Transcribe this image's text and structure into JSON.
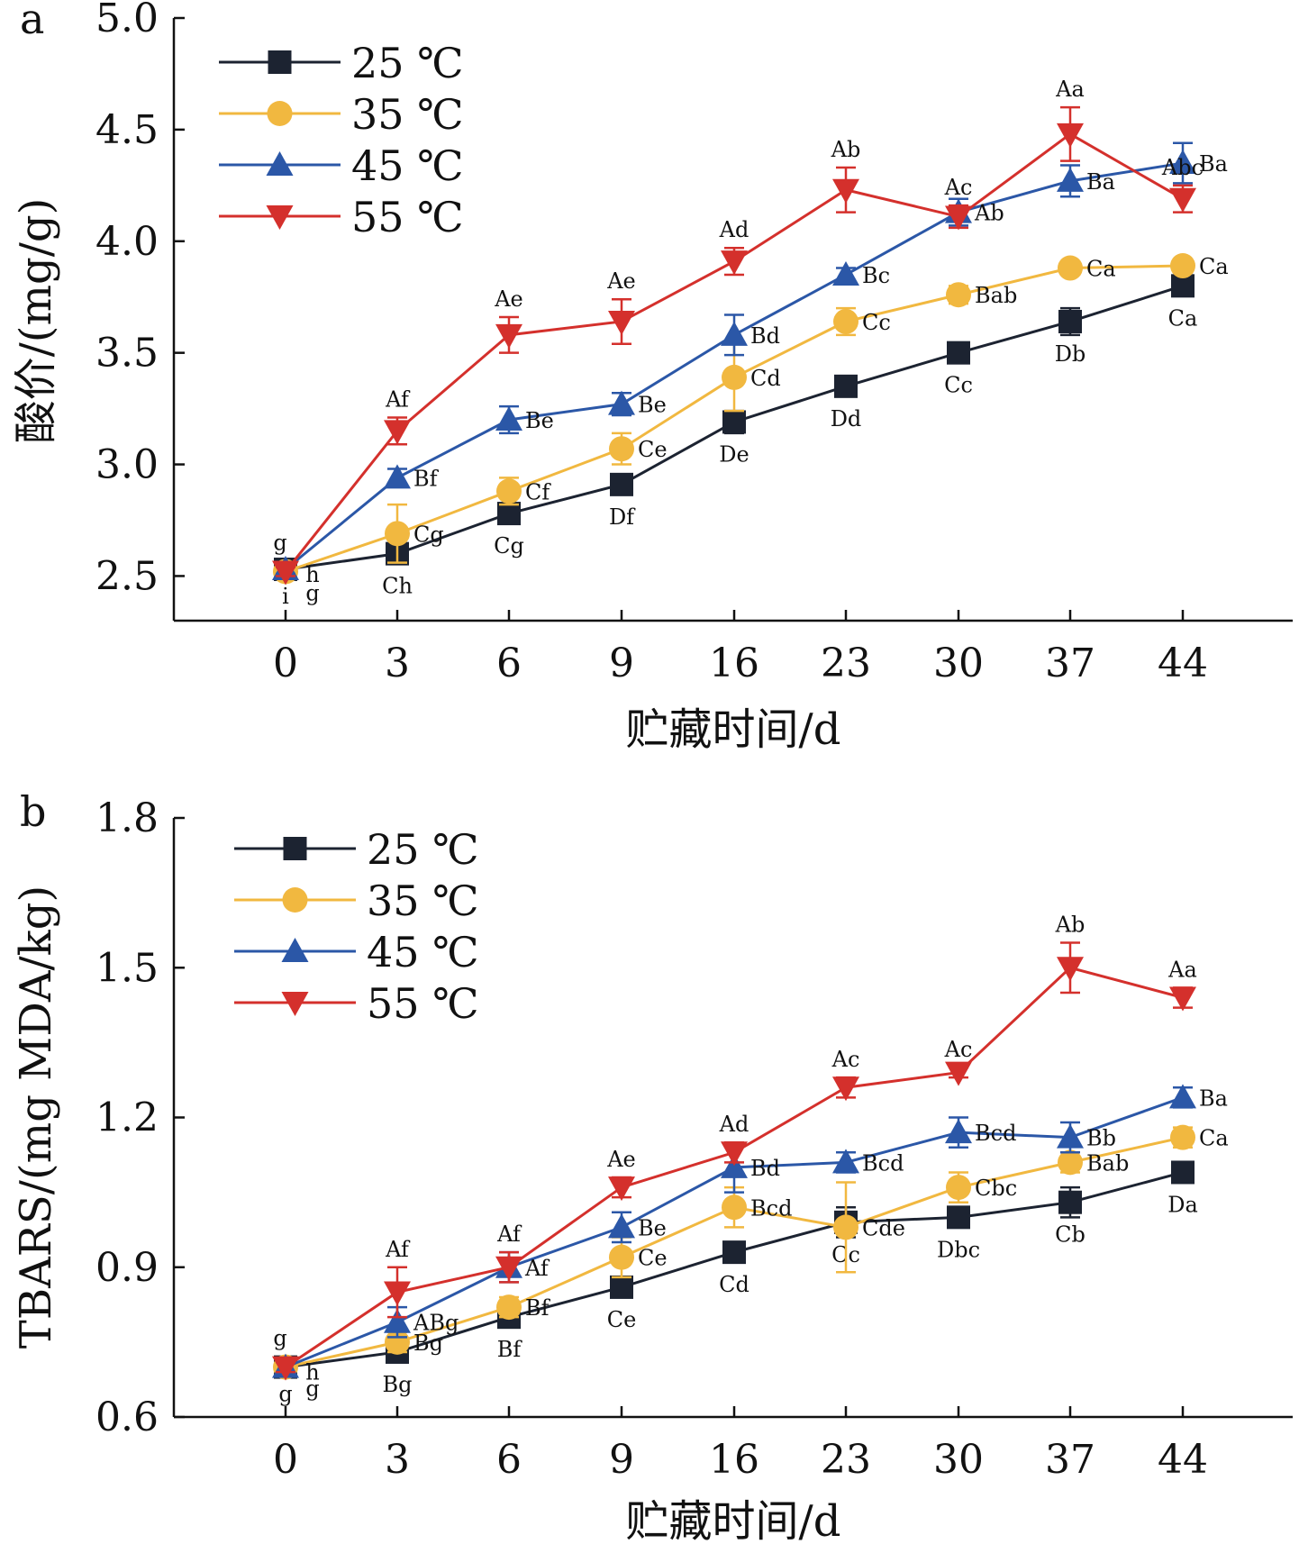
{
  "chart_data": [
    {
      "type": "line",
      "panel_label": "a",
      "ylabel": "酸价/(mg/g)",
      "xlabel": "贮藏时间/d",
      "categories": [
        "0",
        "3",
        "6",
        "9",
        "16",
        "23",
        "30",
        "37",
        "44"
      ],
      "ylim": [
        2.3,
        5.0
      ],
      "yticks": [
        "2.5",
        "3.0",
        "3.5",
        "4.0",
        "4.5",
        "5.0"
      ],
      "legend_position": "top-left",
      "grid": false,
      "series": [
        {
          "name": "25 ℃",
          "color": "#1c2331",
          "marker": "square",
          "values": [
            2.53,
            2.6,
            2.78,
            2.91,
            3.19,
            3.35,
            3.5,
            3.64,
            3.8
          ],
          "errors": [
            0.02,
            0.03,
            0.02,
            0.04,
            0.05,
            0.02,
            0.02,
            0.06,
            0.02
          ],
          "labels": [
            "i",
            "Ch",
            "Cg",
            "Df",
            "De",
            "Dd",
            "Cc",
            "Db",
            "Ca"
          ]
        },
        {
          "name": "35 ℃",
          "color": "#f1b840",
          "marker": "circle",
          "values": [
            2.52,
            2.69,
            2.88,
            3.07,
            3.39,
            3.64,
            3.76,
            3.88,
            3.89
          ],
          "errors": [
            0.02,
            0.13,
            0.06,
            0.07,
            0.15,
            0.06,
            0.04,
            0.02,
            0.02
          ],
          "labels": [
            "g",
            "Cg",
            "Cf",
            "Ce",
            "Cd",
            "Cc",
            "Bab",
            "Ca",
            "Ca"
          ]
        },
        {
          "name": "45 ℃",
          "color": "#2b57a7",
          "marker": "triangle-up",
          "values": [
            2.53,
            2.94,
            3.2,
            3.27,
            3.58,
            3.85,
            4.13,
            4.27,
            4.35
          ],
          "errors": [
            0.02,
            0.04,
            0.06,
            0.05,
            0.09,
            0.03,
            0.06,
            0.07,
            0.09
          ],
          "labels": [
            "h",
            "Bf",
            "Be",
            "Be",
            "Bd",
            "Bc",
            "Ab",
            "Ba",
            "Ba"
          ]
        },
        {
          "name": "55 ℃",
          "color": "#d4302c",
          "marker": "triangle-down",
          "values": [
            2.52,
            3.15,
            3.58,
            3.64,
            3.91,
            4.23,
            4.11,
            4.48,
            4.19
          ],
          "errors": [
            0.02,
            0.06,
            0.08,
            0.1,
            0.06,
            0.1,
            0.05,
            0.12,
            0.06
          ],
          "labels": [
            "g",
            "Af",
            "Ae",
            "Ae",
            "Ad",
            "Ab",
            "Ac",
            "Aa",
            "Abc"
          ]
        }
      ]
    },
    {
      "type": "line",
      "panel_label": "b",
      "ylabel": "TBARS/(mg MDA/kg)",
      "xlabel": "贮藏时间/d",
      "categories": [
        "0",
        "3",
        "6",
        "9",
        "16",
        "23",
        "30",
        "37",
        "44"
      ],
      "ylim": [
        0.6,
        1.8
      ],
      "yticks": [
        "0.6",
        "0.9",
        "1.2",
        "1.5",
        "1.8"
      ],
      "legend_position": "top-left",
      "grid": false,
      "series": [
        {
          "name": "25 ℃",
          "color": "#1c2331",
          "marker": "square",
          "values": [
            0.7,
            0.73,
            0.8,
            0.86,
            0.93,
            0.99,
            1.0,
            1.03,
            1.09
          ],
          "errors": [
            0.01,
            0.02,
            0.02,
            0.01,
            0.02,
            0.03,
            0.02,
            0.03,
            0.01
          ],
          "labels": [
            "g",
            "Bg",
            "Bf",
            "Ce",
            "Cd",
            "Cc",
            "Dbc",
            "Cb",
            "Da"
          ]
        },
        {
          "name": "35 ℃",
          "color": "#f1b840",
          "marker": "circle",
          "values": [
            0.7,
            0.75,
            0.82,
            0.92,
            1.02,
            0.98,
            1.06,
            1.11,
            1.16
          ],
          "errors": [
            0.01,
            0.02,
            0.02,
            0.04,
            0.04,
            0.09,
            0.03,
            0.02,
            0.02
          ],
          "labels": [
            "g",
            "Bg",
            "Bf",
            "Ce",
            "Bcd",
            "Cde",
            "Cbc",
            "Bab",
            "Ca"
          ]
        },
        {
          "name": "45 ℃",
          "color": "#2b57a7",
          "marker": "triangle-up",
          "values": [
            0.7,
            0.79,
            0.9,
            0.98,
            1.1,
            1.11,
            1.17,
            1.16,
            1.24
          ],
          "errors": [
            0.01,
            0.03,
            0.03,
            0.03,
            0.05,
            0.02,
            0.03,
            0.03,
            0.02
          ],
          "labels": [
            "h",
            "ABg",
            "Af",
            "Be",
            "Bd",
            "Bcd",
            "Bcd",
            "Bb",
            "Ba"
          ]
        },
        {
          "name": "55 ℃",
          "color": "#d4302c",
          "marker": "triangle-down",
          "values": [
            0.7,
            0.85,
            0.9,
            1.06,
            1.13,
            1.26,
            1.29,
            1.5,
            1.44
          ],
          "errors": [
            0.01,
            0.05,
            0.03,
            0.02,
            0.02,
            0.02,
            0.01,
            0.05,
            0.02
          ],
          "labels": [
            "g",
            "Af",
            "Af",
            "Ae",
            "Ad",
            "Ac",
            "Ac",
            "Ab",
            "Aa"
          ]
        }
      ]
    }
  ]
}
